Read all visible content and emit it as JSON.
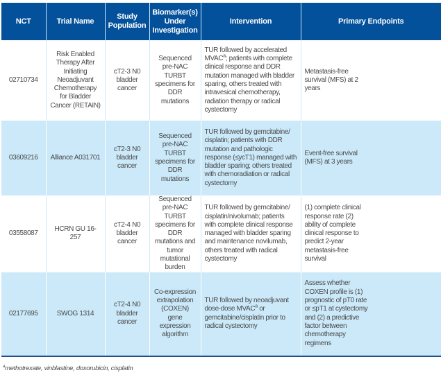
{
  "table": {
    "headers": [
      "NCT",
      "Trial Name",
      "Study Population",
      "Biomarker(s) Under Investigation",
      "Intervention",
      "Primary Endpoints"
    ],
    "rows": [
      {
        "nct": "02710734",
        "trial": "Risk Enabled Therapy After Initiating Neoadjuvant Chemotherapy for Bladder Cancer (RETAIN)",
        "population": "cT2-3 N0 bladder cancer",
        "biomarker": "Sequenced pre-NAC TURBT specimens for DDR mutations",
        "intervention_pre": "TUR followed by accelerated MVAC",
        "intervention_sup": "a",
        "intervention_post": "; patients with complete clinical response and DDR mutation managed with bladder sparing, others treated with intravesical chemotherapy, radiation therapy or radical cystectomy",
        "endpoint": "Metastasis-free survival (MFS) at 2 years"
      },
      {
        "nct": "03609216",
        "trial": "Alliance A031701",
        "population": "cT2-3 N0 bladder cancer",
        "biomarker": "Sequenced pre-NAC TURBT specimens for DDR mutations",
        "intervention_pre": "TUR followed by gemcitabine/ cisplatin; patients with DDR mutation and pathologic response (≤ycT1) managed with bladder sparing; others treated with chemoradiation or radical cystectomy",
        "endpoint": "Event-free survival (MFS) at 3 years"
      },
      {
        "nct": "03558087",
        "trial": "HCRN GU 16-257",
        "population": "cT2-4 N0 bladder cancer",
        "biomarker": "Sequenced pre-NAC TURBT specimens for DDR mutations and tumor mutational burden",
        "intervention_pre": "TUR followed by gemcitabine/ cisplatin/nivolumab; patients with complete clinical response managed with bladder sparing and maintenance novilumab, others treated with radical cystectomy",
        "endpoint": "(1) complete clinical response rate (2) ability of complete clinical response to predict 2-year metastasis-free survival"
      },
      {
        "nct": "02177695",
        "trial": "SWOG 1314",
        "population": "cT2-4 N0 bladder cancer",
        "biomarker": "Co-expression extrapolation (COXEN) gene expression algorithm",
        "intervention_pre": "TUR followed by neoadjuvant dose-dose MVAC",
        "intervention_sup": "a",
        "intervention_post": " or gemcitabine/cisplatin prior to radical cystectomy",
        "endpoint": "Assess whether COXEN profile is (1) prognostic of pT0 rate or ≤pT1 at cystectomy and (2) a predictive factor between chemotherapy regimens"
      }
    ]
  },
  "footnote": {
    "marker": "a",
    "text": "methotrexate, vinblastine, doxorubicin, cisplatin"
  },
  "colors": {
    "header": "#03509b",
    "alt_row": "#cbe9f9",
    "rule": "#1f4f8f"
  }
}
